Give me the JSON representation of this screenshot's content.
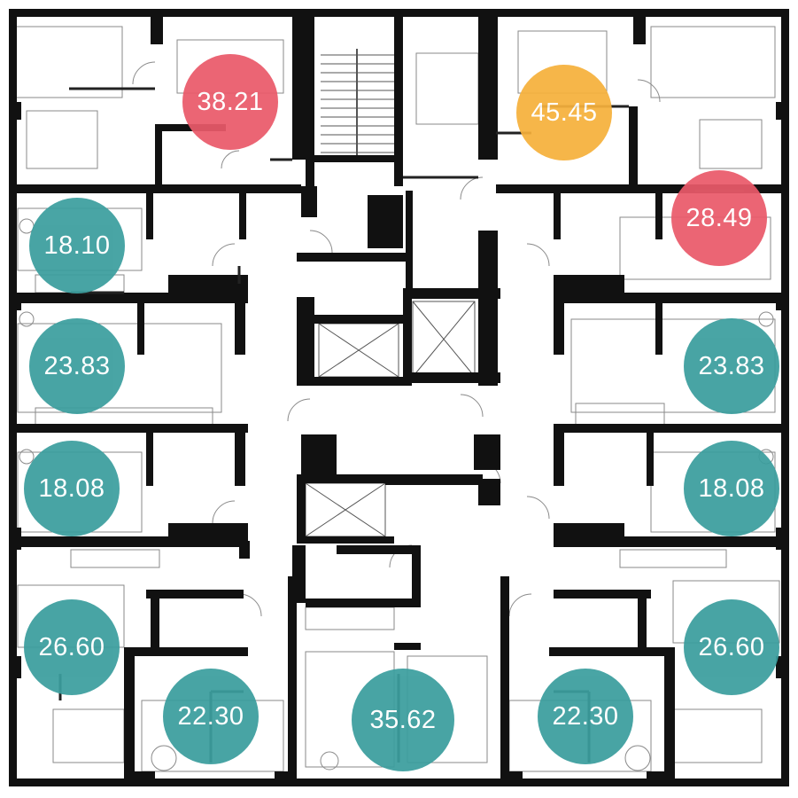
{
  "colors": {
    "wall": "#111111",
    "line": "#555555",
    "badge_available": "#3b9e9e",
    "badge_sold": "#ea5a6a",
    "badge_reserved": "#f6b13c"
  },
  "units": [
    {
      "id": "u1",
      "area": "38.21",
      "status": "sold"
    },
    {
      "id": "u2",
      "area": "45.45",
      "status": "reserved"
    },
    {
      "id": "u3",
      "area": "28.49",
      "status": "sold"
    },
    {
      "id": "u4",
      "area": "18.10",
      "status": "available"
    },
    {
      "id": "u5",
      "area": "23.83",
      "status": "available"
    },
    {
      "id": "u6",
      "area": "23.83",
      "status": "available"
    },
    {
      "id": "u7",
      "area": "18.08",
      "status": "available"
    },
    {
      "id": "u8",
      "area": "18.08",
      "status": "available"
    },
    {
      "id": "u9",
      "area": "26.60",
      "status": "available"
    },
    {
      "id": "u10",
      "area": "26.60",
      "status": "available"
    },
    {
      "id": "u11",
      "area": "22.30",
      "status": "available"
    },
    {
      "id": "u12",
      "area": "35.62",
      "status": "available"
    },
    {
      "id": "u13",
      "area": "22.30",
      "status": "available"
    }
  ]
}
